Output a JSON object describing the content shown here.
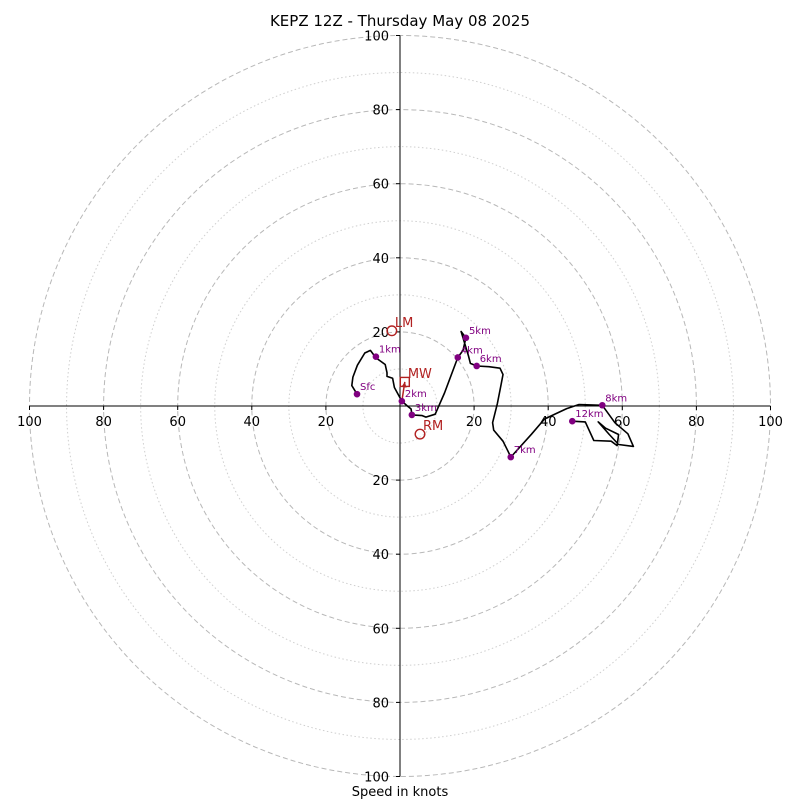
{
  "chart_data": {
    "type": "scatter",
    "title": "KEPZ 12Z - Thursday May 08 2025",
    "xlabel": "Speed in knots",
    "ylabel": "",
    "xlim": [
      -100,
      100
    ],
    "ylim": [
      -100,
      100
    ],
    "rings_dashed": [
      20,
      40,
      60,
      80,
      100
    ],
    "rings_dotted": [
      10,
      30,
      50,
      70,
      90
    ],
    "x_tick_labels": [
      {
        "value": -100,
        "text": "100"
      },
      {
        "value": -80,
        "text": "80"
      },
      {
        "value": -60,
        "text": "60"
      },
      {
        "value": -40,
        "text": "40"
      },
      {
        "value": -20,
        "text": "20"
      },
      {
        "value": 20,
        "text": "20"
      },
      {
        "value": 40,
        "text": "40"
      },
      {
        "value": 60,
        "text": "60"
      },
      {
        "value": 80,
        "text": "80"
      },
      {
        "value": 100,
        "text": "100"
      }
    ],
    "y_tick_labels": [
      {
        "value": 100,
        "text": "100"
      },
      {
        "value": 80,
        "text": "80"
      },
      {
        "value": 60,
        "text": "60"
      },
      {
        "value": 40,
        "text": "40"
      },
      {
        "value": 20,
        "text": "20"
      },
      {
        "value": -20,
        "text": "20"
      },
      {
        "value": -40,
        "text": "40"
      },
      {
        "value": -60,
        "text": "60"
      },
      {
        "value": -80,
        "text": "80"
      },
      {
        "value": -100,
        "text": "100"
      }
    ],
    "hodograph": {
      "color": "#000000",
      "points": [
        [
          -11.6,
          3.2
        ],
        [
          -13,
          5.5
        ],
        [
          -12.7,
          7.8
        ],
        [
          -11.5,
          11
        ],
        [
          -9.5,
          14.3
        ],
        [
          -8,
          15
        ],
        [
          -6.5,
          13
        ],
        [
          -4,
          11.2
        ],
        [
          -3.5,
          9
        ],
        [
          -3.5,
          8
        ],
        [
          -2,
          7.5
        ],
        [
          -1.5,
          5
        ],
        [
          0.5,
          1.3
        ],
        [
          2,
          0
        ],
        [
          3,
          -0.8
        ],
        [
          3.2,
          -2.4
        ],
        [
          6,
          -2.6
        ],
        [
          7,
          -3
        ],
        [
          9.5,
          -2.2
        ],
        [
          12,
          3.5
        ],
        [
          15.6,
          13.1
        ],
        [
          17,
          15
        ],
        [
          17.8,
          18.4
        ],
        [
          16.5,
          20.1
        ],
        [
          18.5,
          13.5
        ],
        [
          19,
          11.5
        ],
        [
          20.7,
          10.8
        ],
        [
          24,
          10.6
        ],
        [
          27,
          10.2
        ],
        [
          27.8,
          8.5
        ],
        [
          27.3,
          5.8
        ],
        [
          26.3,
          0.7
        ],
        [
          25,
          -4.5
        ],
        [
          25.3,
          -6.5
        ],
        [
          27.8,
          -9.5
        ],
        [
          29.1,
          -12.1
        ],
        [
          29.9,
          -13.8
        ],
        [
          35.5,
          -7.6
        ],
        [
          39,
          -3.5
        ],
        [
          45,
          -0.7
        ],
        [
          48.3,
          0.4
        ],
        [
          54.6,
          0.2
        ],
        [
          58,
          -4.5
        ],
        [
          61.5,
          -7.5
        ],
        [
          63,
          -10.9
        ],
        [
          59,
          -10.4
        ],
        [
          56.5,
          -7.7
        ],
        [
          53.5,
          -4.3
        ],
        [
          55.5,
          -6
        ],
        [
          59,
          -7.7
        ],
        [
          58.6,
          -10.7
        ],
        [
          57,
          -9.5
        ],
        [
          52.3,
          -9.3
        ],
        [
          50,
          -4.3
        ],
        [
          46.5,
          -4.1
        ]
      ]
    },
    "height_markers": [
      {
        "label": "Sfc",
        "x": -11.6,
        "y": 3.2
      },
      {
        "label": "1km",
        "x": -6.5,
        "y": 13.3
      },
      {
        "label": "2km",
        "x": 0.5,
        "y": 1.3
      },
      {
        "label": "3km",
        "x": 3.2,
        "y": -2.4
      },
      {
        "label": "4km",
        "x": 15.6,
        "y": 13.1
      },
      {
        "label": "5km",
        "x": 17.8,
        "y": 18.4
      },
      {
        "label": "6km",
        "x": 20.7,
        "y": 10.8
      },
      {
        "label": "7km",
        "x": 29.9,
        "y": -13.8
      },
      {
        "label": "8km",
        "x": 54.6,
        "y": 0.2
      },
      {
        "label": "12km",
        "x": 46.5,
        "y": -4.1
      }
    ],
    "marker_color": "#800080",
    "motion_markers": [
      {
        "label": "LM",
        "symbol": "circle",
        "x": -2.2,
        "y": 20.3
      },
      {
        "label": "MW",
        "symbol": "square",
        "x": 1.3,
        "y": 6.5
      },
      {
        "label": "RM",
        "symbol": "circle",
        "x": 5.4,
        "y": -7.6
      }
    ],
    "motion_color": "#b22222",
    "storm_arrow": {
      "from": [
        0.5,
        1.3
      ],
      "to": [
        1.3,
        6.5
      ]
    }
  }
}
